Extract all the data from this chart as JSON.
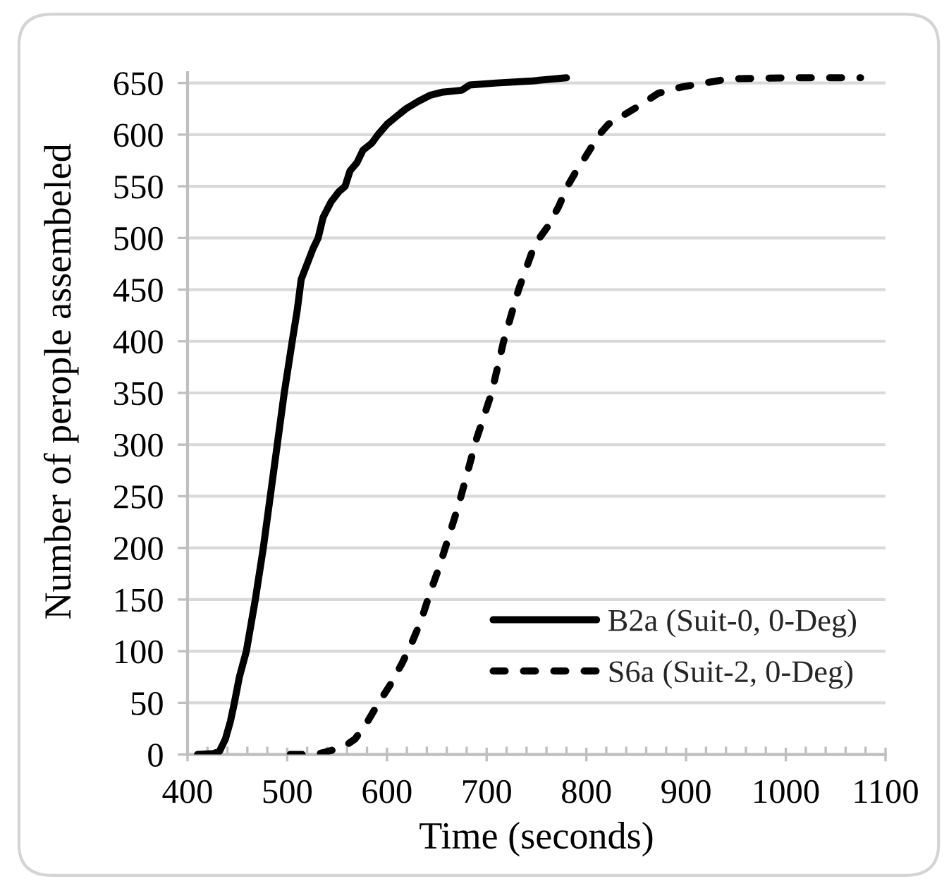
{
  "chart_data": {
    "type": "line",
    "xlabel": "Time (seconds)",
    "ylabel": "Number of perople assembeled",
    "xlim": [
      400,
      1100
    ],
    "xticks": [
      400,
      {
        "value": 420,
        "label": null
      },
      {
        "value": 440,
        "label": null
      },
      {
        "value": 460,
        "label": null
      },
      {
        "value": 480,
        "label": null
      },
      500,
      {
        "value": 520,
        "label": null
      },
      {
        "value": 540,
        "label": null
      },
      {
        "value": 560,
        "label": null
      },
      {
        "value": 580,
        "label": null
      },
      600,
      {
        "value": 620,
        "label": null
      },
      {
        "value": 640,
        "label": null
      },
      {
        "value": 660,
        "label": null
      },
      {
        "value": 680,
        "label": null
      },
      700,
      {
        "value": 720,
        "label": null
      },
      {
        "value": 740,
        "label": null
      },
      {
        "value": 760,
        "label": null
      },
      {
        "value": 780,
        "label": null
      },
      800,
      {
        "value": 820,
        "label": null
      },
      {
        "value": 840,
        "label": null
      },
      {
        "value": 860,
        "label": null
      },
      {
        "value": 880,
        "label": null
      },
      900,
      {
        "value": 920,
        "label": null
      },
      {
        "value": 940,
        "label": null
      },
      {
        "value": 960,
        "label": null
      },
      {
        "value": 980,
        "label": null
      },
      1000,
      {
        "value": 1020,
        "label": null
      },
      {
        "value": 1040,
        "label": null
      },
      {
        "value": 1060,
        "label": null
      },
      {
        "value": 1080,
        "label": null
      },
      1100
    ],
    "ylim": [
      0,
      660
    ],
    "yticks": [
      0,
      50,
      100,
      150,
      200,
      250,
      300,
      350,
      400,
      450,
      500,
      550,
      600,
      650
    ],
    "grid": "y",
    "legend": "bottom right",
    "series": [
      {
        "name": "B2a (Suit-0, 0-Deg)",
        "color": "#000000",
        "line_style": "solid",
        "x": [
          410,
          426,
          432,
          438,
          443,
          447,
          452,
          459,
          468,
          476,
          483,
          490,
          497,
          505,
          510,
          514,
          520,
          526,
          531,
          536,
          544,
          552,
          558,
          563,
          570,
          576,
          585,
          591,
          600,
          610,
          619,
          631,
          643,
          655,
          665,
          675,
          683,
          710,
          746,
          780
        ],
        "values": [
          0,
          1,
          3,
          15,
          32,
          50,
          75,
          100,
          150,
          200,
          250,
          300,
          350,
          400,
          430,
          460,
          475,
          490,
          500,
          520,
          535,
          545,
          550,
          565,
          573,
          585,
          592,
          600,
          610,
          618,
          625,
          632,
          638,
          641,
          642,
          643,
          648,
          650,
          652,
          655
        ]
      },
      {
        "name": "S6a (Suit-2, 0-Deg)",
        "color": "#000000",
        "line_style": "dashed",
        "x": [
          503,
          528,
          537,
          556,
          568,
          580,
          591,
          603,
          615,
          624,
          634,
          643,
          653,
          662,
          672,
          681,
          690,
          705,
          717,
          732,
          745,
          753,
          762,
          772,
          781,
          790,
          800,
          813,
          822,
          834,
          853,
          872,
          895,
          919,
          943,
          1000,
          1075
        ],
        "values": [
          0,
          0,
          2,
          7,
          15,
          31,
          49,
          67,
          88,
          106,
          129,
          156,
          183,
          211,
          242,
          274,
          306,
          350,
          400,
          450,
          485,
          500,
          512,
          530,
          550,
          565,
          580,
          600,
          610,
          617,
          628,
          640,
          646,
          650,
          654,
          655,
          655
        ]
      }
    ]
  }
}
